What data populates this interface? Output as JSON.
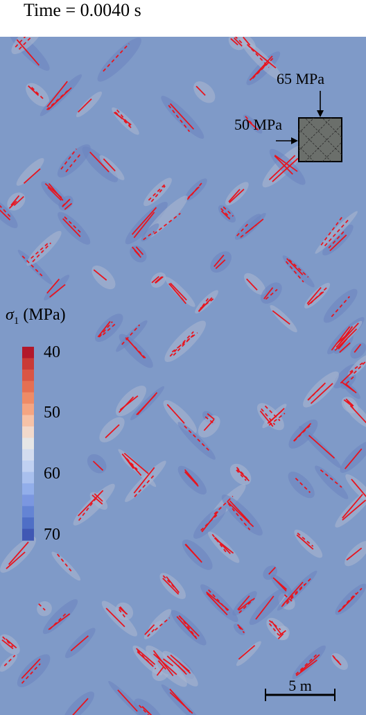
{
  "time_label": "Time = 0.0040 s",
  "load_box": {
    "vertical_stress": "65 MPa",
    "horizontal_stress": "50 MPa"
  },
  "colorbar": {
    "symbol": "σ",
    "subscript": "1",
    "unit": " (MPa)",
    "ticks": [
      "40",
      "50",
      "60",
      "70"
    ],
    "colors": [
      "#b2182b",
      "#c93a36",
      "#d95544",
      "#e56f52",
      "#ee8b66",
      "#f4a582",
      "#f6c2a7",
      "#f2d9cb",
      "#e6e6e6",
      "#d3dcef",
      "#c0d1f2",
      "#a9c0ee",
      "#92aeea",
      "#7b97e0",
      "#6484d4",
      "#4f6fc6",
      "#4058b4"
    ]
  },
  "scale_bar": {
    "label": "5 m"
  },
  "colors": {
    "background": "#7f9ac8",
    "halo": "#6d86c0",
    "halo_light": "#a9b6cf",
    "crack": "#e8141e"
  }
}
